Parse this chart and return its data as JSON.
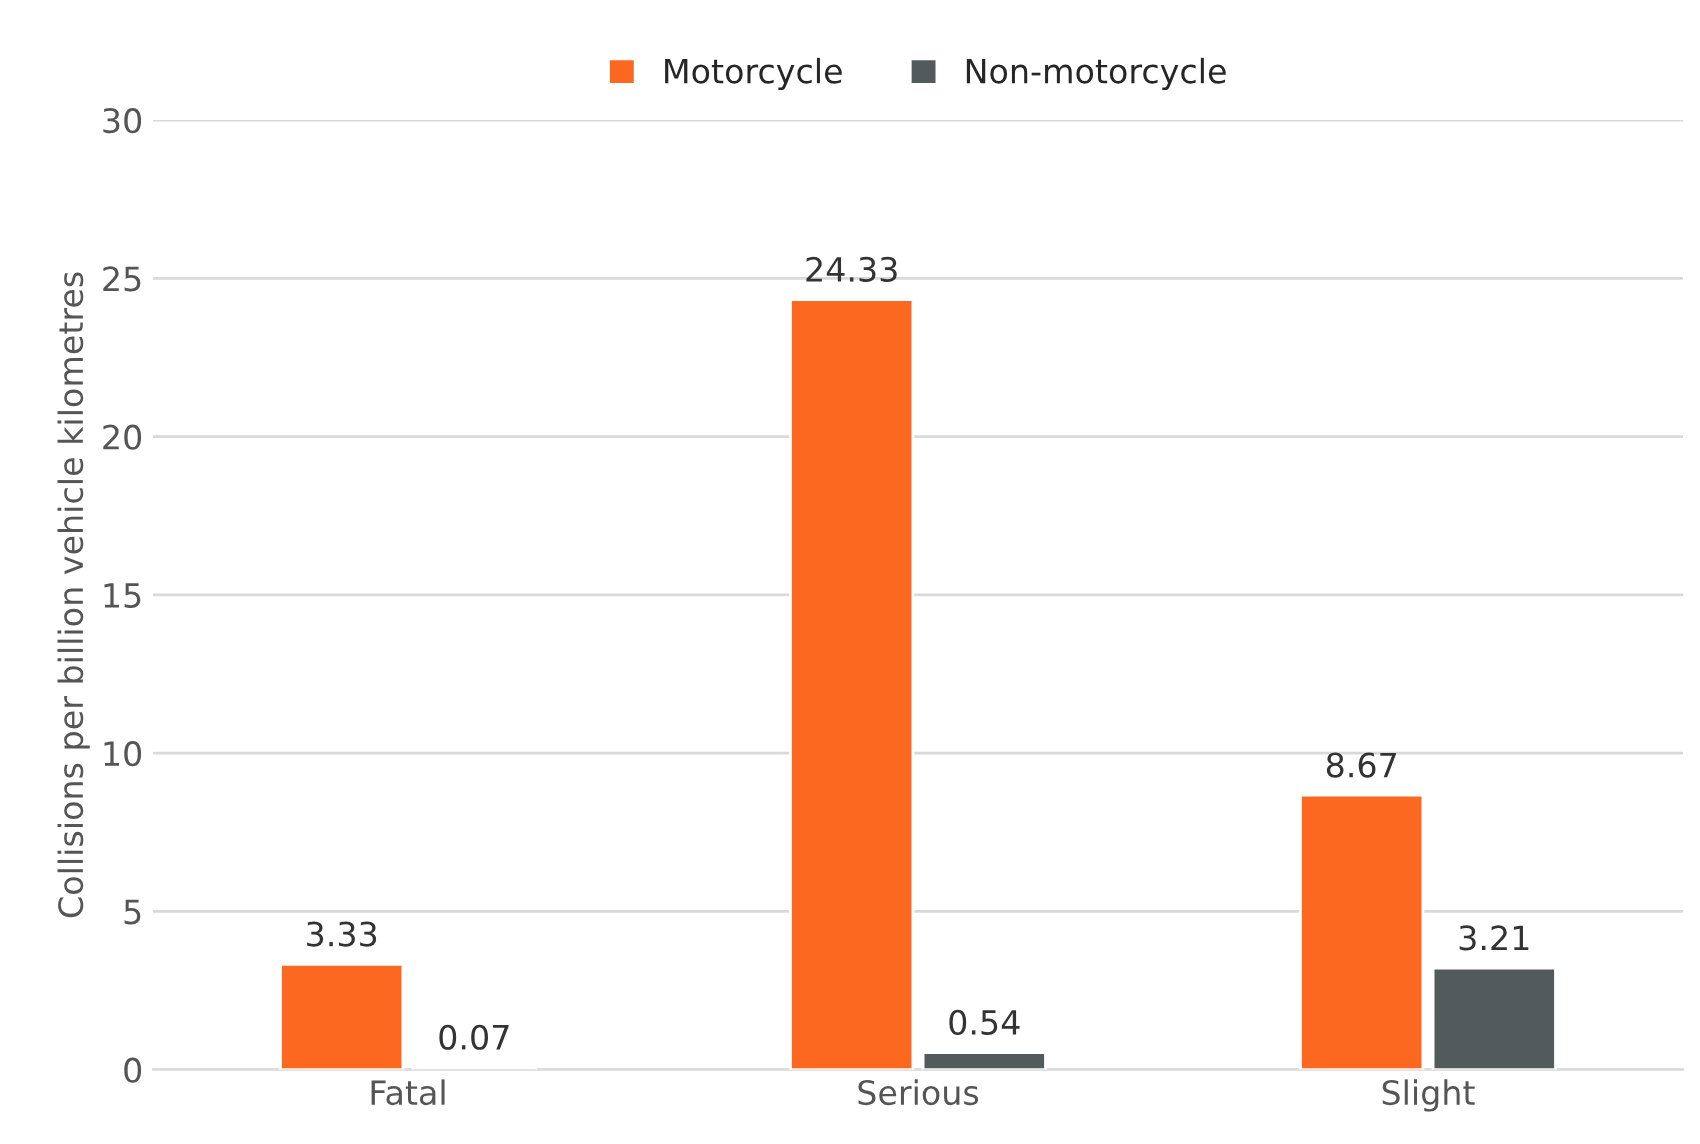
{
  "chart_data": {
    "type": "bar",
    "ylabel": "Collisions per billion vehicle kilometres",
    "categories": [
      "Fatal",
      "Serious",
      "Slight"
    ],
    "series": [
      {
        "name": "Motorcycle",
        "color": "#fd6820",
        "values": [
          3.33,
          24.33,
          8.67
        ]
      },
      {
        "name": "Non-motorcycle",
        "color": "#535a5c",
        "values": [
          0.07,
          0.54,
          3.21
        ]
      }
    ],
    "ylim": [
      0,
      30
    ],
    "yticks": [
      0,
      5,
      10,
      15,
      20,
      25,
      30
    ],
    "grid": "y",
    "legend": "top",
    "data_labels": true
  }
}
